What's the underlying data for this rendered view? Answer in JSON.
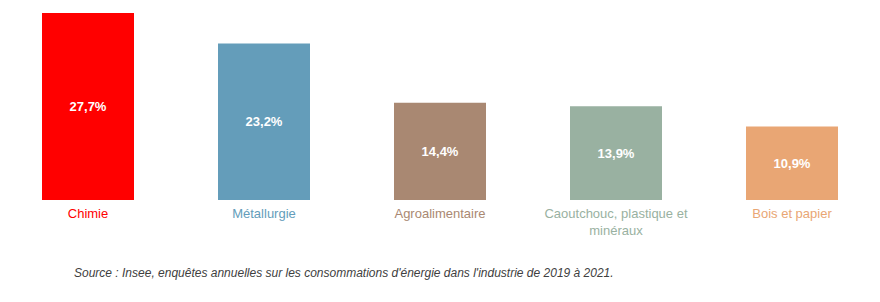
{
  "chart_data": {
    "type": "bar",
    "categories": [
      "Chimie",
      "Métallurgie",
      "Agroalimentaire",
      "Caoutchouc, plastique et minéraux",
      "Bois et papier"
    ],
    "values": [
      27.7,
      23.2,
      14.4,
      13.9,
      10.9
    ],
    "value_labels": [
      "27,7%",
      "23,2%",
      "14,4%",
      "13,9%",
      "10,9%"
    ],
    "colors": [
      "#ff0000",
      "#649dba",
      "#a98872",
      "#99b1a1",
      "#e9a674"
    ],
    "data_labels": true,
    "tick_labels": "x",
    "grid": false,
    "annotations": [
      "Source : Insee, enquêtes annuelles sur les consommations d'énergie dans l'industrie de 2019 à 2021."
    ]
  }
}
